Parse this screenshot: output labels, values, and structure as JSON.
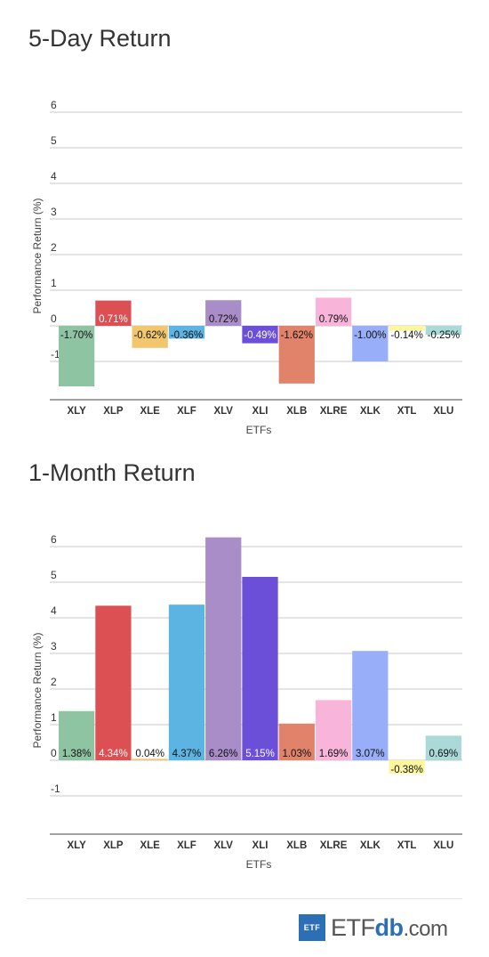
{
  "chart_data": [
    {
      "type": "bar",
      "title": "5-Day Return",
      "xlabel": "ETFs",
      "ylabel": "Performance Return (%)",
      "ylim": [
        -2,
        6
      ],
      "yticks": [
        6,
        5,
        4,
        3,
        2,
        1,
        0,
        -1
      ],
      "grid": true,
      "categories": [
        "XLY",
        "XLP",
        "XLE",
        "XLF",
        "XLV",
        "XLI",
        "XLB",
        "XLRE",
        "XLK",
        "XTL",
        "XLU"
      ],
      "values": [
        -1.7,
        0.71,
        -0.62,
        -0.36,
        0.72,
        -0.49,
        -1.62,
        0.79,
        -1.0,
        -0.14,
        -0.25
      ],
      "labels": [
        "-1.70%",
        "0.71%",
        "-0.62%",
        "-0.36%",
        "0.72%",
        "-0.49%",
        "-1.62%",
        "0.79%",
        "-1.00%",
        "-0.14%",
        "-0.25%"
      ],
      "colors": [
        "#8fc4a3",
        "#dc5054",
        "#f1c66c",
        "#5cb4e3",
        "#a98dc9",
        "#6b4fd8",
        "#e0836a",
        "#f8b4d9",
        "#98aef9",
        "#fef79e",
        "#aad9d7"
      ]
    },
    {
      "type": "bar",
      "title": "1-Month Return",
      "xlabel": "ETFs",
      "ylabel": "Performance Return (%)",
      "ylim": [
        -2,
        6
      ],
      "yticks": [
        6,
        5,
        4,
        3,
        2,
        1,
        0,
        -1
      ],
      "grid": true,
      "categories": [
        "XLY",
        "XLP",
        "XLE",
        "XLF",
        "XLV",
        "XLI",
        "XLB",
        "XLRE",
        "XLK",
        "XTL",
        "XLU"
      ],
      "values": [
        1.38,
        4.34,
        0.04,
        4.37,
        6.26,
        5.15,
        1.03,
        1.69,
        3.07,
        -0.38,
        0.69
      ],
      "labels": [
        "1.38%",
        "4.34%",
        "0.04%",
        "4.37%",
        "6.26%",
        "5.15%",
        "1.03%",
        "1.69%",
        "3.07%",
        "-0.38%",
        "0.69%"
      ],
      "colors": [
        "#8fc4a3",
        "#dc5054",
        "#f1c66c",
        "#5cb4e3",
        "#a98dc9",
        "#6b4fd8",
        "#e0836a",
        "#f8b4d9",
        "#98aef9",
        "#fef79e",
        "#aad9d7"
      ]
    }
  ],
  "logo": {
    "badge": "ETF",
    "brand_a": "ETF",
    "brand_b": "db",
    "brand_c": ".com"
  }
}
